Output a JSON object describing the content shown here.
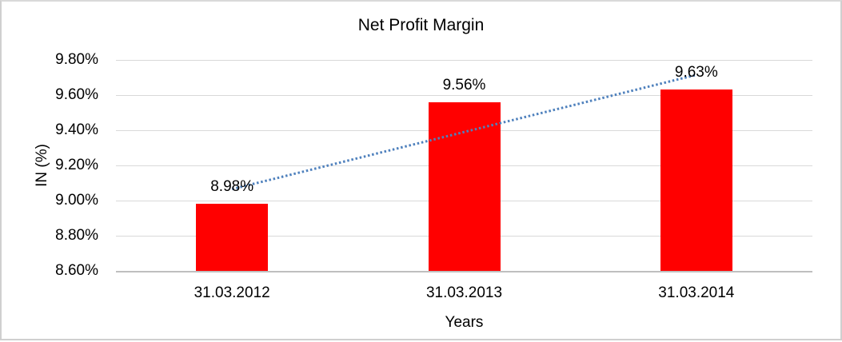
{
  "frame": {
    "background": "#ffffff",
    "border_color": "#cfcfcf"
  },
  "chart_data": {
    "type": "bar",
    "title": "Net Profit Margin",
    "categories": [
      "31.03.2012",
      "31.03.2013",
      "31.03.2014"
    ],
    "values": [
      8.98,
      9.56,
      9.63
    ],
    "data_labels": [
      "8.98%",
      "9.56%",
      "9.63%"
    ],
    "xlabel": "Years",
    "ylabel": "IN (%)",
    "ylim": [
      8.6,
      9.8
    ],
    "ytick_values": [
      9.8,
      9.6,
      9.4,
      9.2,
      9.0,
      8.8,
      8.6
    ],
    "yticks": [
      "9.80%",
      "9.60%",
      "9.40%",
      "9.20%",
      "9.00%",
      "8.80%",
      "8.60%"
    ],
    "grid_on": true,
    "legend_position": "none",
    "bar_color": "#FF0000",
    "grid_color": "#D9D9D9",
    "axis_line_color": "#BFBFBF",
    "trendline": {
      "type": "linear",
      "style": "dotted",
      "color": "#4F81BD",
      "start_category_index": 0,
      "end_category_index": 2,
      "start_value": 9.065,
      "end_value": 9.715
    }
  }
}
